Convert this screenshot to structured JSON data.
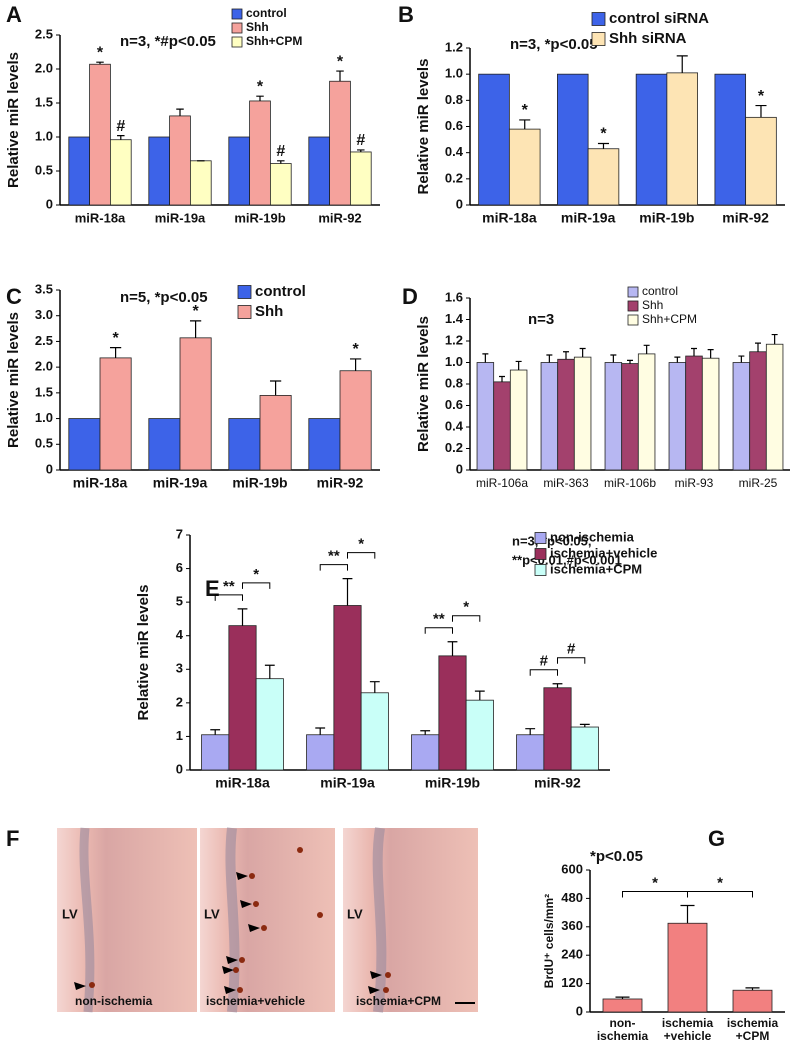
{
  "chart_data": [
    {
      "type": "bar",
      "panel": "A",
      "note": "n=3, *#p<0.05",
      "y_label": "Relative miR levels",
      "categories": [
        "miR-18a",
        "miR-19a",
        "miR-19b",
        "miR-92"
      ],
      "series": [
        {
          "name": "control",
          "color": "#3d63e8",
          "values": [
            1,
            1,
            1,
            1
          ]
        },
        {
          "name": "Shh",
          "color": "#f5a29c",
          "values": [
            2.07,
            1.31,
            1.53,
            1.82
          ],
          "errors": [
            0.03,
            0.1,
            0.07,
            0.15
          ],
          "significance": [
            "*",
            null,
            "*",
            "*"
          ]
        },
        {
          "name": "Shh+CPM",
          "color": "#ffffc2",
          "values": [
            0.96,
            0.65,
            0.61,
            0.78
          ],
          "errors": [
            0.06,
            0,
            0.04,
            0.03
          ],
          "significance": [
            "#",
            null,
            "#",
            "#"
          ]
        }
      ],
      "ylim": [
        0,
        2.5
      ],
      "yticks": [
        0,
        0.5,
        {
          "value": 1,
          "label": "1.0"
        },
        1.5,
        {
          "value": 2,
          "label": "2.0"
        },
        2.5
      ]
    },
    {
      "type": "bar",
      "panel": "B",
      "note": "n=3, *p<0.05",
      "y_label": "Relative miR levels",
      "categories": [
        "miR-18a",
        "miR-19a",
        "miR-19b",
        "miR-92"
      ],
      "series": [
        {
          "name": "control siRNA",
          "color": "#3d63e8",
          "values": [
            1,
            1,
            1,
            1
          ]
        },
        {
          "name": "Shh siRNA",
          "color": "#fde4b4",
          "values": [
            0.58,
            0.43,
            1.01,
            0.67
          ],
          "errors": [
            0.07,
            0.04,
            0.13,
            0.09
          ],
          "significance": [
            "*",
            "*",
            null,
            "*"
          ]
        }
      ],
      "ylim": [
        0,
        1.2
      ],
      "yticks": [
        0,
        0.2,
        0.4,
        0.6,
        0.8,
        {
          "value": 1,
          "label": "1.0"
        },
        1.2
      ]
    },
    {
      "type": "bar",
      "panel": "C",
      "note": "n=5, *p<0.05",
      "y_label": "Relative miR levels",
      "categories": [
        "miR-18a",
        "miR-19a",
        "miR-19b",
        "miR-92"
      ],
      "series": [
        {
          "name": "control",
          "color": "#3d63e8",
          "values": [
            1,
            1,
            1,
            1
          ]
        },
        {
          "name": "Shh",
          "color": "#f5a29c",
          "values": [
            2.18,
            2.57,
            1.45,
            1.93
          ],
          "errors": [
            0.2,
            0.33,
            0.28,
            0.23
          ],
          "significance": [
            "*",
            "*",
            null,
            "*"
          ]
        }
      ],
      "ylim": [
        0,
        3.5
      ],
      "yticks": [
        0,
        0.5,
        {
          "value": 1,
          "label": "1.0"
        },
        1.5,
        {
          "value": 2,
          "label": "2.0"
        },
        2.5,
        {
          "value": 3,
          "label": "3.0"
        },
        3.5
      ]
    },
    {
      "type": "bar",
      "panel": "D",
      "note": "n=3",
      "y_label": "Relative miR levels",
      "categories": [
        "miR-106a",
        "miR-363",
        "miR-106b",
        "miR-93",
        "miR-25"
      ],
      "series": [
        {
          "name": "control",
          "color": "#b7b7f2",
          "values": [
            1,
            1,
            1,
            1,
            1
          ],
          "errors": [
            0.08,
            0.07,
            0.07,
            0.05,
            0.06
          ]
        },
        {
          "name": "Shh",
          "color": "#a3416d",
          "values": [
            0.82,
            1.03,
            0.99,
            1.06,
            1.1
          ],
          "errors": [
            0.05,
            0.07,
            0.03,
            0.07,
            0.08
          ]
        },
        {
          "name": "Shh+CPM",
          "color": "#fffde2",
          "values": [
            0.93,
            1.05,
            1.08,
            1.04,
            1.17
          ],
          "errors": [
            0.08,
            0.08,
            0.08,
            0.08,
            0.09
          ]
        }
      ],
      "ylim": [
        0,
        1.6
      ],
      "yticks": [
        0,
        0.2,
        0.4,
        0.6,
        0.8,
        {
          "value": 1,
          "label": "1.0"
        },
        1.2,
        1.4,
        1.6
      ]
    },
    {
      "type": "bar",
      "panel": "E",
      "note": [
        "n=3, *p<0.05,",
        "**p<0.01,#p<0.001"
      ],
      "y_label": "Relative miR levels",
      "categories": [
        "miR-18a",
        "miR-19a",
        "miR-19b",
        "miR-92"
      ],
      "series": [
        {
          "name": "non-ischemia",
          "color": "#a9a9f2",
          "values": [
            1.05,
            1.05,
            1.05,
            1.05
          ],
          "errors": [
            0.15,
            0.2,
            0.12,
            0.18
          ]
        },
        {
          "name": "ischemia+vehicle",
          "color": "#9a2f5b",
          "values": [
            4.3,
            4.9,
            3.4,
            2.45
          ],
          "errors": [
            0.5,
            0.8,
            0.42,
            0.12
          ]
        },
        {
          "name": "ischemia+CPM",
          "color": "#c9fff8",
          "values": [
            2.72,
            2.3,
            2.08,
            1.28
          ],
          "errors": [
            0.4,
            0.33,
            0.27,
            0.08
          ]
        }
      ],
      "brackets": [
        [
          "**",
          "*"
        ],
        [
          "**",
          "*"
        ],
        [
          "**",
          "*"
        ],
        [
          "#",
          "#"
        ]
      ],
      "ylim": [
        0,
        7
      ],
      "yticks": [
        0,
        1,
        2,
        3,
        4,
        5,
        6,
        7
      ]
    },
    {
      "type": "bar",
      "panel": "G",
      "note": "*p<0.05",
      "y_label": "BrdU⁺ cells/mm²",
      "categories": [
        [
          "non-",
          "ischemia"
        ],
        [
          "ischemia",
          "+vehicle"
        ],
        [
          "ischemia",
          "+CPM"
        ]
      ],
      "series": [
        {
          "name": null,
          "color": "#f28080",
          "values": [
            55,
            375,
            92
          ],
          "errors": [
            8,
            75,
            10
          ]
        }
      ],
      "brackets": [
        "*",
        "*"
      ],
      "ylim": [
        0,
        600
      ],
      "yticks": [
        0,
        120,
        240,
        360,
        480,
        600
      ]
    }
  ],
  "figure_f": {
    "panel": "F",
    "images": [
      {
        "region": "LV",
        "caption": "non-ischemia"
      },
      {
        "region": "LV",
        "caption": "ischemia+vehicle"
      },
      {
        "region": "LV",
        "caption": "ischemia+CPM"
      }
    ]
  }
}
